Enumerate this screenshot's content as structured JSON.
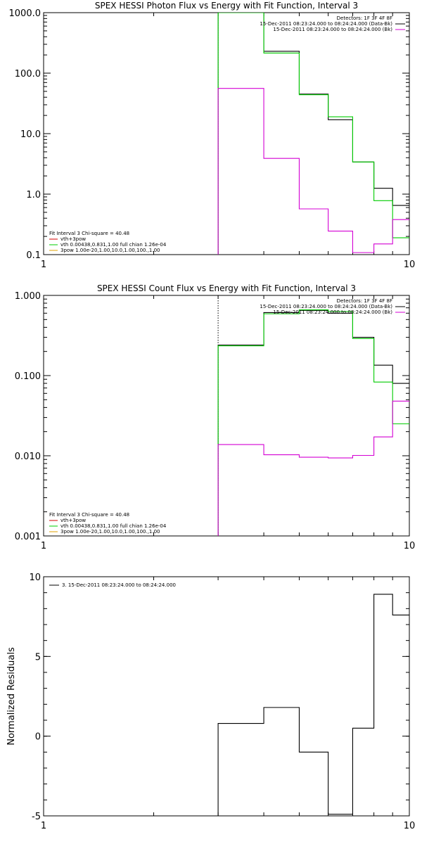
{
  "chart_data": [
    {
      "id": "photon",
      "type": "line",
      "title": "SPEX HESSI Photon Flux vs Energy with Fit Function, Interval 3",
      "xlabel": "",
      "ylabel": "",
      "xscale": "log",
      "yscale": "log",
      "xlim": [
        1,
        10
      ],
      "ylim": [
        0.1,
        1000
      ],
      "xticks": [
        {
          "v": 1,
          "label": "1"
        },
        {
          "v": 10,
          "label": "10"
        }
      ],
      "yticks": [
        {
          "v": 1000,
          "label": "1000.0"
        },
        {
          "v": 100,
          "label": "100.0"
        },
        {
          "v": 10,
          "label": "10.0"
        },
        {
          "v": 1,
          "label": "1.0"
        },
        {
          "v": 0.1,
          "label": "0.1"
        }
      ],
      "vline": {
        "x": 3.0,
        "color": "#00cc00"
      },
      "legend_top": [
        "Detectors: 1F 3F 4F 8F",
        "15-Dec-2011 08:23:24.000 to 08:24:24.000 (Data-Bk)",
        "15-Dec-2011 08:23:24.000 to 08:24:24.000 (Bk)"
      ],
      "legend_bottom": [
        "Fit Interval 3   Chi-square = 40.48",
        "vth+3pow",
        "vth 0.00438,0.831,1.00  full chian 1.26e-04",
        "3pow 1.00e-20,1.00,10.0,1.00,100.,1.00"
      ],
      "edges": [
        3.0,
        4.0,
        5.0,
        6.0,
        7.0,
        8.0,
        9.0,
        10.0
      ],
      "series": [
        {
          "color": "#000000",
          "values": [
            1000,
            230,
            45,
            17,
            3.4,
            1.25,
            0.65
          ]
        },
        {
          "color": "#00cc00",
          "values": [
            1000,
            215,
            44,
            19,
            3.4,
            0.78,
            0.19
          ]
        },
        {
          "color": "#d400d4",
          "values": [
            56,
            3.9,
            0.57,
            0.245,
            0.108,
            0.15,
            0.38
          ]
        }
      ]
    },
    {
      "id": "count",
      "type": "line",
      "title": "SPEX HESSI Count Flux vs Energy with Fit Function, Interval 3",
      "xlabel": "",
      "ylabel": "",
      "xscale": "log",
      "yscale": "log",
      "xlim": [
        1,
        10
      ],
      "ylim": [
        0.001,
        1.0
      ],
      "xticks": [
        {
          "v": 1,
          "label": "1"
        },
        {
          "v": 10,
          "label": "10"
        }
      ],
      "yticks": [
        {
          "v": 1.0,
          "label": "1.000"
        },
        {
          "v": 0.1,
          "label": "0.100"
        },
        {
          "v": 0.01,
          "label": "0.010"
        },
        {
          "v": 0.001,
          "label": "0.001"
        }
      ],
      "vline": {
        "x": 3.0,
        "color": "#000000"
      },
      "legend_top": [
        "Detectors: 1F 3F 4F 8F",
        "15-Dec-2011 08:23:24.000 to 08:24:24.000 (Data-Bk)",
        "15-Dec-2011 08:23:24.000 to 08:24:24.000 (Bk)"
      ],
      "legend_bottom": [
        "Fit Interval 3   Chi-square = 40.48",
        "vth+3pow",
        "vth 0.00438,0.831,1.00  full chian 1.26e-04",
        "3pow 1.00e-20,1.00,10.0,1.00,100.,1.00"
      ],
      "edges": [
        3.0,
        4.0,
        5.0,
        6.0,
        7.0,
        8.0,
        9.0,
        10.0
      ],
      "series": [
        {
          "color": "#000000",
          "values": [
            0.24,
            0.61,
            0.65,
            0.6,
            0.3,
            0.135,
            0.08
          ]
        },
        {
          "color": "#00cc00",
          "values": [
            0.235,
            0.59,
            0.66,
            0.63,
            0.29,
            0.083,
            0.025
          ]
        },
        {
          "color": "#d400d4",
          "values": [
            0.0138,
            0.0103,
            0.0096,
            0.0094,
            0.0101,
            0.0172,
            0.048
          ]
        }
      ]
    },
    {
      "id": "residuals",
      "type": "line",
      "title": "",
      "xlabel": "",
      "ylabel": "Normalized Residuals",
      "xscale": "log",
      "yscale": "linear",
      "xlim": [
        1,
        10
      ],
      "ylim": [
        -5,
        10
      ],
      "xticks": [
        {
          "v": 1,
          "label": "1"
        },
        {
          "v": 10,
          "label": "10"
        }
      ],
      "yticks": [
        {
          "v": 10,
          "label": "10"
        },
        {
          "v": 5,
          "label": "5"
        },
        {
          "v": 0,
          "label": "0"
        },
        {
          "v": -5,
          "label": "-5"
        }
      ],
      "legend_top": [
        "3. 15-Dec-2011 08:23:24.000 to 08:24:24.000"
      ],
      "edges": [
        3.0,
        4.0,
        5.0,
        6.0,
        7.0,
        8.0,
        9.0,
        10.0
      ],
      "series": [
        {
          "color": "#000000",
          "values": [
            0.8,
            1.8,
            -1.0,
            -4.9,
            0.5,
            8.9,
            7.6
          ]
        }
      ]
    }
  ]
}
